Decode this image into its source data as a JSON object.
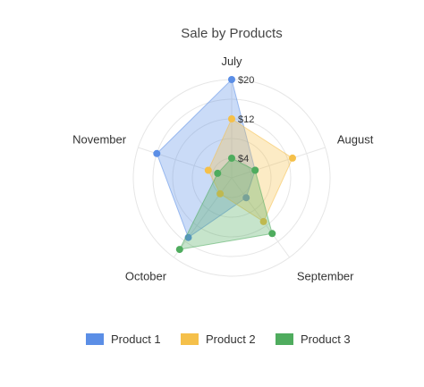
{
  "chart_data": {
    "type": "radar",
    "title": "Sale by Products",
    "categories": [
      "July",
      "August",
      "September",
      "October",
      "November"
    ],
    "tick_labels": [
      "$4",
      "$12",
      "$20"
    ],
    "tick_values": [
      4,
      12,
      20
    ],
    "rmax": 20,
    "series": [
      {
        "name": "Product 1",
        "color": "#5b8ee6",
        "values": [
          20,
          5,
          5,
          15,
          16
        ]
      },
      {
        "name": "Product 2",
        "color": "#f5c04a",
        "values": [
          12,
          13,
          11,
          4,
          5
        ]
      },
      {
        "name": "Product 3",
        "color": "#4fac5e",
        "values": [
          4,
          5,
          14,
          18,
          3
        ]
      }
    ],
    "legend_position": "bottom",
    "grid": true
  }
}
